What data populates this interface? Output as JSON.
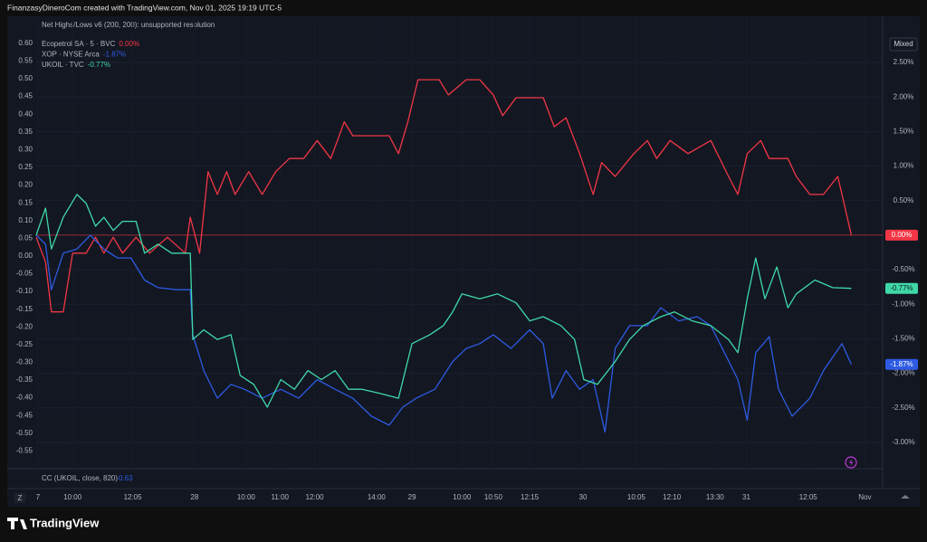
{
  "header": {
    "title": "FinanzasyDineroCom created with TradingView.com, Nov 01, 2025 19:19 UTC-5"
  },
  "ui": {
    "mixed": "Mixed",
    "zoom": "Z",
    "brand": "TradingView"
  },
  "chart_data": {
    "type": "line",
    "indicator": "Net Highs/Lows v6 (200, 200): unsupported resolution",
    "lower_pane": {
      "label": "CC (UKOIL, close, 820)",
      "value": "0.63"
    },
    "grid": true,
    "xlim": [
      0,
      100
    ],
    "xticks": [
      {
        "value": 0.2,
        "label": "7"
      },
      {
        "value": 4.3,
        "label": "10:00"
      },
      {
        "value": 11.4,
        "label": "12:05"
      },
      {
        "value": 18.7,
        "label": "28"
      },
      {
        "value": 24.8,
        "label": "10:00"
      },
      {
        "value": 28.8,
        "label": "11:00"
      },
      {
        "value": 32.9,
        "label": "12:00"
      },
      {
        "value": 40.2,
        "label": "14:00"
      },
      {
        "value": 44.4,
        "label": "29"
      },
      {
        "value": 50.3,
        "label": "10:00"
      },
      {
        "value": 54.0,
        "label": "10:50"
      },
      {
        "value": 58.3,
        "label": "12:15"
      },
      {
        "value": 64.6,
        "label": "30"
      },
      {
        "value": 70.9,
        "label": "10:05"
      },
      {
        "value": 75.1,
        "label": "12:10"
      },
      {
        "value": 80.2,
        "label": "13:30"
      },
      {
        "value": 83.9,
        "label": "31"
      },
      {
        "value": 91.2,
        "label": "12:05"
      },
      {
        "value": 97.9,
        "label": "Nov"
      }
    ],
    "ylim": [
      -0.6,
      0.62
    ],
    "yticks": [
      {
        "value": 0.6,
        "label": "0.60"
      },
      {
        "value": 0.55,
        "label": "0.55"
      },
      {
        "value": 0.5,
        "label": "0.50"
      },
      {
        "value": 0.45,
        "label": "0.45"
      },
      {
        "value": 0.4,
        "label": "0.40"
      },
      {
        "value": 0.35,
        "label": "0.35"
      },
      {
        "value": 0.3,
        "label": "0.30"
      },
      {
        "value": 0.25,
        "label": "0.25"
      },
      {
        "value": 0.2,
        "label": "0.20"
      },
      {
        "value": 0.15,
        "label": "0.15"
      },
      {
        "value": 0.1,
        "label": "0.10"
      },
      {
        "value": 0.05,
        "label": "0.05"
      },
      {
        "value": 0,
        "label": "0.00"
      },
      {
        "value": -0.05,
        "label": "-0.05"
      },
      {
        "value": -0.1,
        "label": "-0.10"
      },
      {
        "value": -0.15,
        "label": "-0.15"
      },
      {
        "value": -0.2,
        "label": "-0.20"
      },
      {
        "value": -0.25,
        "label": "-0.25"
      },
      {
        "value": -0.3,
        "label": "-0.30"
      },
      {
        "value": -0.35,
        "label": "-0.35"
      },
      {
        "value": -0.4,
        "label": "-0.40"
      },
      {
        "value": -0.45,
        "label": "-0.45"
      },
      {
        "value": -0.5,
        "label": "-0.50"
      },
      {
        "value": -0.55,
        "label": "-0.55"
      }
    ],
    "y2lim": [
      -3.38,
      2.88
    ],
    "y2ticks": [
      {
        "value": 2.5,
        "label": "2.50%"
      },
      {
        "value": 2,
        "label": "2.00%"
      },
      {
        "value": 1.5,
        "label": "1.50%"
      },
      {
        "value": 1,
        "label": "1.00%"
      },
      {
        "value": 0.5,
        "label": "0.50%"
      },
      {
        "value": -0.5,
        "label": "-0.50%"
      },
      {
        "value": -1,
        "label": "-1.00%"
      },
      {
        "value": -1.5,
        "label": "-1.50%"
      },
      {
        "value": -2,
        "label": "-2.00%"
      },
      {
        "value": -2.5,
        "label": "-2.50%"
      },
      {
        "value": -3,
        "label": "-3.00%"
      }
    ],
    "series": [
      {
        "name": "Ecopetrol SA · 5 · BVC",
        "change": "0.00%",
        "color": "#f23645",
        "axis": "y2",
        "x": [
          0,
          1.1,
          1.8,
          3.2,
          4.3,
          5.9,
          7.0,
          8.0,
          9.1,
          10.2,
          11.8,
          13.4,
          15.5,
          17.6,
          18.2,
          19.3,
          20.3,
          21.4,
          22.5,
          23.5,
          25.1,
          26.7,
          28.3,
          29.9,
          31.6,
          33.2,
          34.8,
          36.4,
          37.4,
          41.7,
          42.8,
          43.9,
          45.1,
          47.6,
          48.7,
          50.8,
          52.4,
          54.0,
          55.1,
          56.7,
          59.9,
          61.2,
          62.6,
          64.2,
          65.8,
          66.8,
          68.4,
          70.6,
          72.2,
          73.3,
          74.9,
          77.0,
          79.7,
          81.8,
          82.9,
          84.0,
          85.6,
          86.6,
          88.8,
          89.8,
          91.4,
          93.0,
          94.7,
          95.2,
          96.3
        ],
        "values": [
          -0.03,
          -0.39,
          -1.11,
          -1.11,
          -0.26,
          -0.26,
          -0.03,
          -0.26,
          -0.03,
          -0.26,
          -0.03,
          -0.26,
          -0.03,
          -0.26,
          0.26,
          -0.26,
          0.92,
          0.59,
          0.92,
          0.59,
          0.92,
          0.59,
          0.92,
          1.11,
          1.11,
          1.37,
          1.11,
          1.64,
          1.44,
          1.44,
          1.18,
          1.64,
          2.25,
          2.25,
          2.03,
          2.25,
          2.25,
          2.03,
          1.73,
          1.99,
          1.99,
          1.57,
          1.7,
          1.18,
          0.59,
          1.05,
          0.85,
          1.18,
          1.37,
          1.11,
          1.37,
          1.18,
          1.37,
          0.85,
          0.59,
          1.18,
          1.37,
          1.11,
          1.11,
          0.85,
          0.59,
          0.59,
          0.85,
          0.59,
          0.0
        ]
      },
      {
        "name": "XOP · NYSE Arca",
        "change": "-1.87%",
        "color": "#2d5be3",
        "axis": "y2",
        "x": [
          0,
          1.1,
          1.8,
          3.2,
          4.8,
          6.4,
          8.0,
          9.6,
          11.2,
          12.8,
          14.4,
          16.6,
          18.2,
          18.5,
          19.8,
          21.4,
          23.0,
          24.6,
          26.7,
          28.9,
          31.0,
          33.2,
          35.3,
          37.4,
          39.6,
          41.7,
          43.3,
          44.9,
          47.1,
          49.2,
          50.8,
          52.4,
          54.0,
          56.1,
          58.3,
          59.9,
          60.96,
          62.6,
          64.2,
          65.8,
          67.2,
          68.4,
          70.1,
          72.2,
          73.8,
          75.9,
          78.1,
          79.7,
          81.3,
          82.9,
          84.0,
          85.0,
          86.6,
          87.7,
          89.3,
          91.4,
          93.0,
          95.2,
          96.3
        ],
        "values": [
          0,
          -0.13,
          -0.79,
          -0.26,
          -0.2,
          0,
          -0.2,
          -0.33,
          -0.33,
          -0.65,
          -0.76,
          -0.79,
          -0.79,
          -1.44,
          -1.96,
          -2.36,
          -2.16,
          -2.23,
          -2.36,
          -2.23,
          -2.36,
          -2.09,
          -2.23,
          -2.36,
          -2.62,
          -2.75,
          -2.49,
          -2.36,
          -2.23,
          -1.83,
          -1.64,
          -1.57,
          -1.44,
          -1.64,
          -1.37,
          -1.57,
          -2.36,
          -1.96,
          -2.23,
          -2.09,
          -2.85,
          -1.64,
          -1.31,
          -1.31,
          -1.05,
          -1.24,
          -1.18,
          -1.31,
          -1.7,
          -2.09,
          -2.68,
          -1.7,
          -1.47,
          -2.23,
          -2.62,
          -2.36,
          -1.96,
          -1.57,
          -1.87
        ]
      },
      {
        "name": "UKOIL · TVC",
        "change": "-0.77%",
        "color": "#3fd9a8",
        "axis": "y2",
        "x": [
          0,
          1.1,
          1.8,
          3.2,
          4.8,
          5.9,
          7.0,
          8.0,
          9.1,
          10.2,
          11.8,
          12.8,
          14.4,
          16.0,
          18.2,
          18.5,
          19.8,
          21.4,
          23.0,
          24.1,
          25.7,
          27.3,
          28.9,
          30.5,
          32.1,
          33.7,
          35.3,
          36.9,
          38.5,
          40.6,
          42.8,
          44.4,
          46.5,
          48.1,
          49.2,
          50.3,
          52.4,
          54.5,
          56.7,
          58.3,
          59.9,
          62.0,
          63.6,
          64.7,
          66.3,
          68.4,
          70.1,
          71.7,
          73.8,
          75.4,
          77.5,
          79.7,
          81.8,
          82.9,
          84.0,
          85.0,
          86.1,
          87.5,
          88.8,
          89.8,
          92.0,
          94.1,
          96.3
        ],
        "values": [
          0,
          0.39,
          -0.2,
          0.26,
          0.59,
          0.46,
          0.13,
          0.26,
          0.07,
          0.2,
          0.2,
          -0.26,
          -0.13,
          -0.26,
          -0.26,
          -1.51,
          -1.37,
          -1.51,
          -1.44,
          -2.03,
          -2.16,
          -2.49,
          -2.09,
          -2.23,
          -1.96,
          -2.09,
          -1.96,
          -2.23,
          -2.23,
          -2.29,
          -2.36,
          -1.57,
          -1.44,
          -1.31,
          -1.11,
          -0.85,
          -0.92,
          -0.85,
          -0.98,
          -1.24,
          -1.18,
          -1.31,
          -1.51,
          -2.09,
          -2.16,
          -1.83,
          -1.51,
          -1.31,
          -1.18,
          -1.11,
          -1.24,
          -1.31,
          -1.51,
          -1.7,
          -0.92,
          -0.33,
          -0.92,
          -0.46,
          -1.05,
          -0.85,
          -0.65,
          -0.76,
          -0.77
        ]
      }
    ]
  }
}
